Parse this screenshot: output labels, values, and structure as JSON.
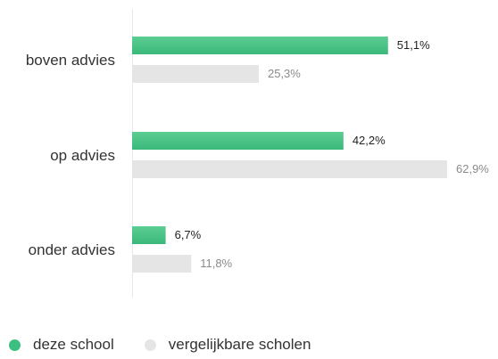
{
  "chart_data": {
    "type": "bar",
    "orientation": "horizontal",
    "categories": [
      "boven advies",
      "op advies",
      "onder advies"
    ],
    "series": [
      {
        "name": "deze school",
        "values": [
          51.1,
          42.2,
          6.7
        ],
        "labels": [
          "51,1%",
          "42,2%",
          "6,7%"
        ],
        "color": "#4dc48a"
      },
      {
        "name": "vergelijkbare scholen",
        "values": [
          25.3,
          62.9,
          11.8
        ],
        "labels": [
          "25,3%",
          "62,9%",
          "11,8%"
        ],
        "color": "#e5e5e5"
      }
    ],
    "xlim": [
      0,
      62.9
    ],
    "grid": false,
    "legend_position": "bottom-left"
  },
  "legend": {
    "items": [
      {
        "label": "deze school",
        "color": "#3cbf7f"
      },
      {
        "label": "vergelijkbare scholen",
        "color": "#e5e5e5"
      }
    ]
  }
}
